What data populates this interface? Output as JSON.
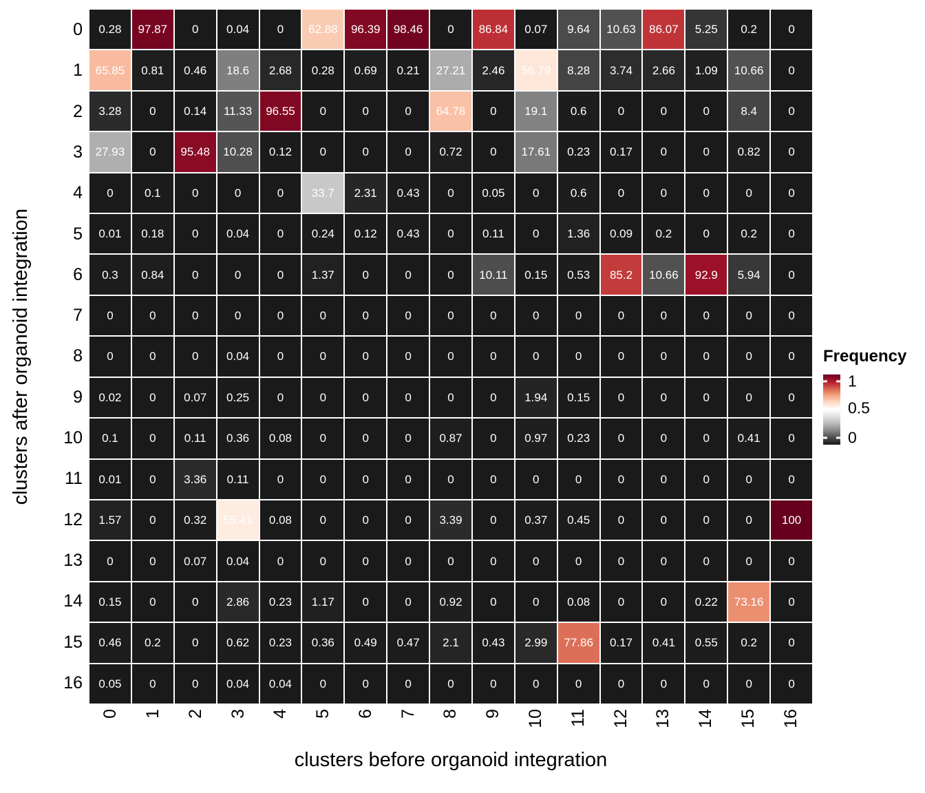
{
  "chart_data": {
    "type": "heatmap",
    "title": "",
    "xlabel": "clusters before organoid integration",
    "ylabel": "clusters after organoid integration",
    "x_categories": [
      "0",
      "1",
      "2",
      "3",
      "4",
      "5",
      "6",
      "7",
      "8",
      "9",
      "10",
      "11",
      "12",
      "13",
      "14",
      "15",
      "16"
    ],
    "y_categories": [
      "0",
      "1",
      "2",
      "3",
      "4",
      "5",
      "6",
      "7",
      "8",
      "9",
      "10",
      "11",
      "12",
      "13",
      "14",
      "15",
      "16"
    ],
    "values": [
      [
        0.28,
        97.87,
        0,
        0.04,
        0,
        62.88,
        96.39,
        98.46,
        0,
        86.84,
        0.07,
        9.64,
        10.63,
        86.07,
        5.25,
        0.2,
        0
      ],
      [
        65.85,
        0.81,
        0.46,
        18.6,
        2.68,
        0.28,
        0.69,
        0.21,
        27.21,
        2.46,
        56.79,
        8.28,
        3.74,
        2.66,
        1.09,
        10.66,
        0
      ],
      [
        3.28,
        0,
        0.14,
        11.33,
        96.55,
        0,
        0,
        0,
        64.78,
        0,
        19.1,
        0.6,
        0,
        0,
        0,
        8.4,
        0
      ],
      [
        27.93,
        0,
        95.48,
        10.28,
        0.12,
        0,
        0,
        0,
        0.72,
        0,
        17.61,
        0.23,
        0.17,
        0,
        0,
        0.82,
        0
      ],
      [
        0,
        0.1,
        0,
        0,
        0,
        33.7,
        2.31,
        0.43,
        0,
        0.05,
        0,
        0.6,
        0,
        0,
        0,
        0,
        0
      ],
      [
        0.01,
        0.18,
        0,
        0.04,
        0,
        0.24,
        0.12,
        0.43,
        0,
        0.11,
        0,
        1.36,
        0.09,
        0.2,
        0,
        0.2,
        0
      ],
      [
        0.3,
        0.84,
        0,
        0,
        0,
        1.37,
        0,
        0,
        0,
        10.11,
        0.15,
        0.53,
        85.2,
        10.66,
        92.9,
        5.94,
        0
      ],
      [
        0,
        0,
        0,
        0,
        0,
        0,
        0,
        0,
        0,
        0,
        0,
        0,
        0,
        0,
        0,
        0,
        0
      ],
      [
        0,
        0,
        0,
        0.04,
        0,
        0,
        0,
        0,
        0,
        0,
        0,
        0,
        0,
        0,
        0,
        0,
        0
      ],
      [
        0.02,
        0,
        0.07,
        0.25,
        0,
        0,
        0,
        0,
        0,
        0,
        1.94,
        0.15,
        0,
        0,
        0,
        0,
        0
      ],
      [
        0.1,
        0,
        0.11,
        0.36,
        0.08,
        0,
        0,
        0,
        0.87,
        0,
        0.97,
        0.23,
        0,
        0,
        0,
        0.41,
        0
      ],
      [
        0.01,
        0,
        3.36,
        0.11,
        0,
        0,
        0,
        0,
        0,
        0,
        0,
        0,
        0,
        0,
        0,
        0,
        0
      ],
      [
        1.57,
        0,
        0.32,
        55.41,
        0.08,
        0,
        0,
        0,
        3.39,
        0,
        0.37,
        0.45,
        0,
        0,
        0,
        0,
        100
      ],
      [
        0,
        0,
        0.07,
        0.04,
        0,
        0,
        0,
        0,
        0,
        0,
        0,
        0,
        0,
        0,
        0,
        0,
        0
      ],
      [
        0.15,
        0,
        0,
        2.86,
        0.23,
        1.17,
        0,
        0,
        0.92,
        0,
        0,
        0.08,
        0,
        0,
        0.22,
        73.16,
        0
      ],
      [
        0.46,
        0.2,
        0,
        0.62,
        0.23,
        0.36,
        0.49,
        0.47,
        2.1,
        0.43,
        2.99,
        77.86,
        0.17,
        0.41,
        0.55,
        0.2,
        0
      ],
      [
        0.05,
        0,
        0,
        0.04,
        0.04,
        0,
        0,
        0,
        0,
        0,
        0,
        0,
        0,
        0,
        0,
        0,
        0
      ]
    ],
    "value_unit": "percent",
    "legend": {
      "title": "Frequency",
      "tick_labels": [
        "1",
        "0.5",
        "0"
      ]
    },
    "color_scale": {
      "domain": [
        0,
        100
      ],
      "midpoint": 50,
      "low_stops": [
        "#1a1a1a",
        "#4d4d4d",
        "#878787",
        "#bababa",
        "#e0e0e0",
        "#ffffff"
      ],
      "high_stops": [
        "#ffffff",
        "#fddbc7",
        "#f4a582",
        "#d6604d",
        "#b2182b",
        "#67001f"
      ],
      "grid_color": "#ffffff",
      "cell_text_color": "#ffffff"
    }
  }
}
